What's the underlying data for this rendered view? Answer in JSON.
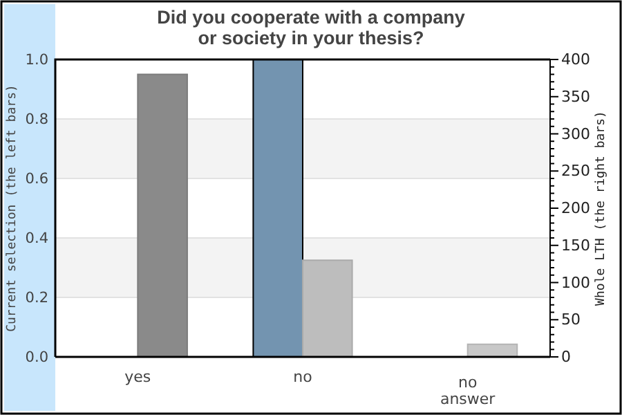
{
  "chart_data": {
    "type": "bar",
    "title": "Did you cooperate with a company\nor society in your thesis?",
    "ylabel": "Current selection (the left bars)",
    "y2label": "Whole LTH (the right bars)",
    "categories": [
      "yes",
      "no",
      "no\nanswer"
    ],
    "series": [
      {
        "color": "#7394b0",
        "values": [
          0,
          1.0,
          0
        ]
      },
      {
        "axis": "y2",
        "colors": [
          "#8a8a8a",
          "#bdbdbd",
          "#c8c8c8"
        ],
        "values": [
          380,
          130,
          17
        ]
      }
    ],
    "ylim": [
      0,
      1
    ],
    "yticks": [
      {
        "value": 0,
        "label": "0.0"
      },
      0.2,
      0.4,
      0.6,
      0.8,
      {
        "value": 1,
        "label": "1.0"
      }
    ],
    "y2lim": [
      0,
      400
    ],
    "y2ticks": [
      0,
      {
        "value": 10,
        "label": null
      },
      {
        "value": 20,
        "label": null
      },
      {
        "value": 30,
        "label": null
      },
      {
        "value": 40,
        "label": null
      },
      50,
      {
        "value": 60,
        "label": null
      },
      {
        "value": 70,
        "label": null
      },
      {
        "value": 80,
        "label": null
      },
      {
        "value": 90,
        "label": null
      },
      100,
      {
        "value": 110,
        "label": null
      },
      {
        "value": 120,
        "label": null
      },
      {
        "value": 130,
        "label": null
      },
      {
        "value": 140,
        "label": null
      },
      150,
      {
        "value": 160,
        "label": null
      },
      {
        "value": 170,
        "label": null
      },
      {
        "value": 180,
        "label": null
      },
      {
        "value": 190,
        "label": null
      },
      200,
      {
        "value": 210,
        "label": null
      },
      {
        "value": 220,
        "label": null
      },
      {
        "value": 230,
        "label": null
      },
      {
        "value": 240,
        "label": null
      },
      250,
      {
        "value": 260,
        "label": null
      },
      {
        "value": 270,
        "label": null
      },
      {
        "value": 280,
        "label": null
      },
      {
        "value": 290,
        "label": null
      },
      300,
      {
        "value": 310,
        "label": null
      },
      {
        "value": 320,
        "label": null
      },
      {
        "value": 330,
        "label": null
      },
      {
        "value": 340,
        "label": null
      },
      350,
      {
        "value": 360,
        "label": null
      },
      {
        "value": 370,
        "label": null
      },
      {
        "value": 380,
        "label": null
      },
      {
        "value": 390,
        "label": null
      },
      400
    ],
    "grid": "y"
  }
}
